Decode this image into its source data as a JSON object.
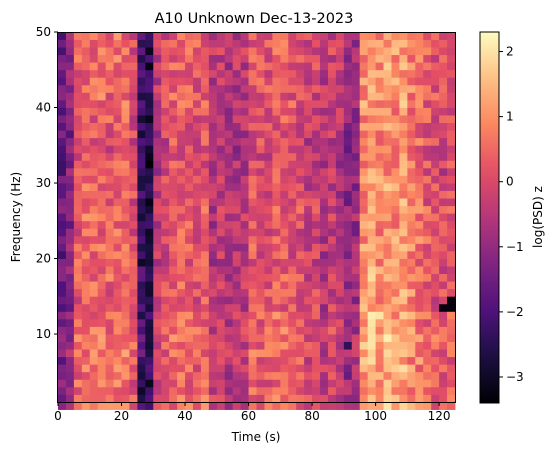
{
  "chart_data": {
    "type": "heatmap",
    "title": "A10 Unknown Dec-13-2023",
    "xlabel": "Time (s)",
    "ylabel": "Frequency (Hz)",
    "colorbar_label": "log(PSD) z",
    "colormap": "magma",
    "xlim": [
      0,
      125
    ],
    "ylim": [
      1,
      50
    ],
    "clim": [
      -3.4,
      2.3
    ],
    "x_ticks": [
      0,
      20,
      40,
      60,
      80,
      100,
      120
    ],
    "y_ticks": [
      10,
      20,
      30,
      40,
      50
    ],
    "colorbar_ticks": [
      -3,
      -2,
      -1,
      0,
      1,
      2
    ],
    "grid": false,
    "time_bin_centers_s": [
      1.25,
      3.75,
      6.25,
      8.75,
      11.25,
      13.75,
      16.25,
      18.75,
      21.25,
      23.75,
      26.25,
      28.75,
      31.25,
      33.75,
      36.25,
      38.75,
      41.25,
      43.75,
      46.25,
      48.75,
      51.25,
      53.75,
      56.25,
      58.75,
      61.25,
      63.75,
      66.25,
      68.75,
      71.25,
      73.75,
      76.25,
      78.75,
      81.25,
      83.75,
      86.25,
      88.75,
      91.25,
      93.75,
      96.25,
      98.75,
      101.25,
      103.75,
      106.25,
      108.75,
      111.25,
      113.75,
      116.25,
      118.75,
      121.25,
      123.75
    ],
    "frequency_bins_hz": [
      1,
      50,
      1
    ],
    "column_mean_z": [
      -1.6,
      -1.1,
      0.3,
      0.5,
      0.4,
      0.5,
      0.3,
      0.6,
      0.5,
      0.1,
      -2.2,
      -2.6,
      -0.4,
      0.0,
      0.4,
      0.5,
      0.3,
      0.2,
      0.3,
      -0.5,
      -0.3,
      -0.6,
      -0.5,
      -0.4,
      0.3,
      0.2,
      0.1,
      0.4,
      0.3,
      0.2,
      0.1,
      -0.2,
      -0.1,
      -0.5,
      -0.2,
      -0.4,
      -1.0,
      -0.8,
      1.0,
      1.3,
      1.0,
      1.2,
      1.0,
      1.2,
      0.8,
      0.6,
      0.3,
      0.1,
      0.0,
      0.2
    ],
    "frequency_profile_z": [
      0.2,
      0.2,
      0.1,
      0.1,
      0.0,
      0.1,
      0.1,
      0.2,
      0.2,
      0.3,
      0.2,
      0.1,
      0.1,
      0.0,
      -0.1,
      0.0,
      0.0,
      0.1,
      0.0,
      -0.1,
      -0.1,
      0.0,
      0.0,
      -0.1,
      -0.1,
      0.0,
      0.0,
      -0.1,
      -0.1,
      -0.1,
      -0.1,
      -0.2,
      -0.2,
      -0.3,
      -0.3,
      -0.2,
      -0.2,
      -0.2,
      -0.1,
      -0.1,
      0.0,
      0.0,
      0.0,
      0.0,
      -0.1,
      0.0,
      0.0,
      0.0,
      0.0
    ],
    "notable_cells": [
      {
        "time_s": 121.25,
        "freq_hz": 14,
        "z": -3.3
      },
      {
        "time_s": 123.75,
        "freq_hz": 14,
        "z": -3.3
      },
      {
        "time_s": 123.75,
        "freq_hz": 15,
        "z": -3.3
      },
      {
        "time_s": 91.25,
        "freq_hz": 9,
        "z": -2.4
      },
      {
        "time_s": 26.25,
        "freq_hz": 3,
        "z": -3.0
      },
      {
        "time_s": 26.25,
        "freq_hz": 20,
        "z": -3.0
      },
      {
        "time_s": 98.75,
        "freq_hz": 9,
        "z": 2.0
      },
      {
        "time_s": 98.75,
        "freq_hz": 13,
        "z": 2.1
      },
      {
        "time_s": 101.25,
        "freq_hz": 13,
        "z": 2.0
      }
    ]
  }
}
